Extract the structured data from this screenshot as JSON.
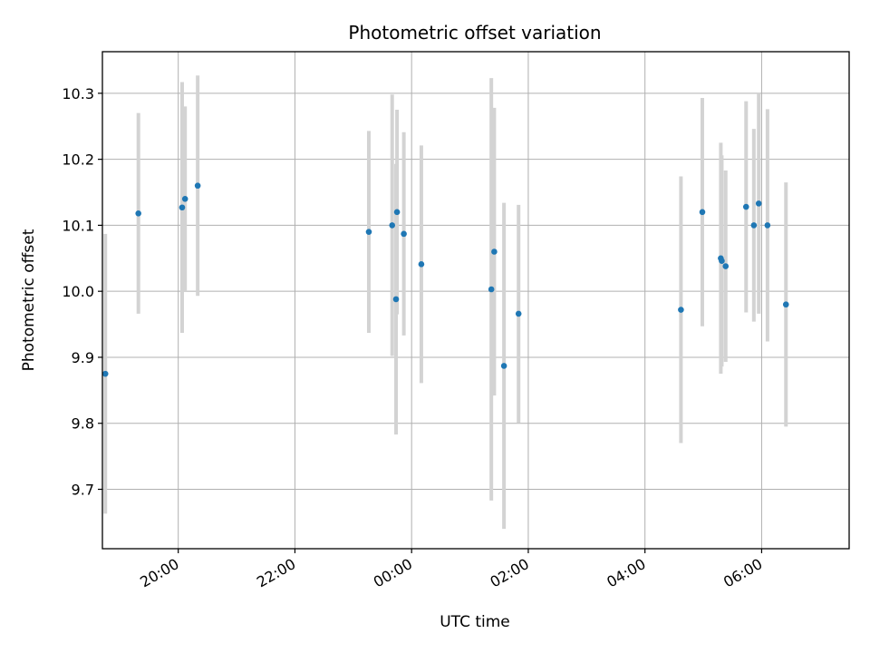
{
  "chart_data": {
    "type": "scatter",
    "title": "Photometric offset variation",
    "xlabel": "UTC time",
    "ylabel": "Photometric offset",
    "x_unit": "hours since 00:00 UTC (negative = previous evening)",
    "xlim": [
      -5.3,
      7.5
    ],
    "ylim": [
      9.61,
      10.363
    ],
    "x_ticks": [
      {
        "value": -4,
        "label": "20:00"
      },
      {
        "value": -2,
        "label": "22:00"
      },
      {
        "value": 0,
        "label": "00:00"
      },
      {
        "value": 2,
        "label": "02:00"
      },
      {
        "value": 4,
        "label": "04:00"
      },
      {
        "value": 6,
        "label": "06:00"
      }
    ],
    "y_ticks": [
      {
        "value": 9.7,
        "label": "9.7"
      },
      {
        "value": 9.8,
        "label": "9.8"
      },
      {
        "value": 9.9,
        "label": "9.9"
      },
      {
        "value": 10.0,
        "label": "10.0"
      },
      {
        "value": 10.1,
        "label": "10.1"
      },
      {
        "value": 10.2,
        "label": "10.2"
      },
      {
        "value": 10.3,
        "label": "10.3"
      }
    ],
    "grid": true,
    "marker_color": "#1f77b4",
    "errorbar_color": "#d3d3d3",
    "series": [
      {
        "points": [
          {
            "x": "18:45",
            "y": 9.875,
            "err": 0.212
          },
          {
            "x": "19:19",
            "y": 10.118,
            "err": 0.152
          },
          {
            "x": "20:04",
            "y": 10.127,
            "err": 0.19
          },
          {
            "x": "20:07",
            "y": 10.14,
            "err": 0.14
          },
          {
            "x": "20:20",
            "y": 10.16,
            "err": 0.167
          },
          {
            "x": "23:16",
            "y": 10.09,
            "err": 0.153
          },
          {
            "x": "23:40",
            "y": 10.1,
            "err": 0.198
          },
          {
            "x": "23:44",
            "y": 9.988,
            "err": 0.205
          },
          {
            "x": "23:45",
            "y": 10.12,
            "err": 0.155
          },
          {
            "x": "23:52",
            "y": 10.087,
            "err": 0.154
          },
          {
            "x": "00:10",
            "y": 10.041,
            "err": 0.18
          },
          {
            "x": "01:22",
            "y": 10.003,
            "err": 0.32
          },
          {
            "x": "01:25",
            "y": 10.06,
            "err": 0.218
          },
          {
            "x": "01:35",
            "y": 9.887,
            "err": 0.247
          },
          {
            "x": "01:50",
            "y": 9.966,
            "err": 0.165
          },
          {
            "x": "04:37",
            "y": 9.972,
            "err": 0.202
          },
          {
            "x": "04:59",
            "y": 10.12,
            "err": 0.173
          },
          {
            "x": "05:18",
            "y": 10.05,
            "err": 0.175
          },
          {
            "x": "05:19",
            "y": 10.046,
            "err": 0.16
          },
          {
            "x": "05:23",
            "y": 10.038,
            "err": 0.145
          },
          {
            "x": "05:44",
            "y": 10.128,
            "err": 0.16
          },
          {
            "x": "05:52",
            "y": 10.1,
            "err": 0.146
          },
          {
            "x": "05:57",
            "y": 10.133,
            "err": 0.167
          },
          {
            "x": "06:06",
            "y": 10.1,
            "err": 0.176
          },
          {
            "x": "06:25",
            "y": 9.98,
            "err": 0.185
          }
        ]
      }
    ]
  }
}
